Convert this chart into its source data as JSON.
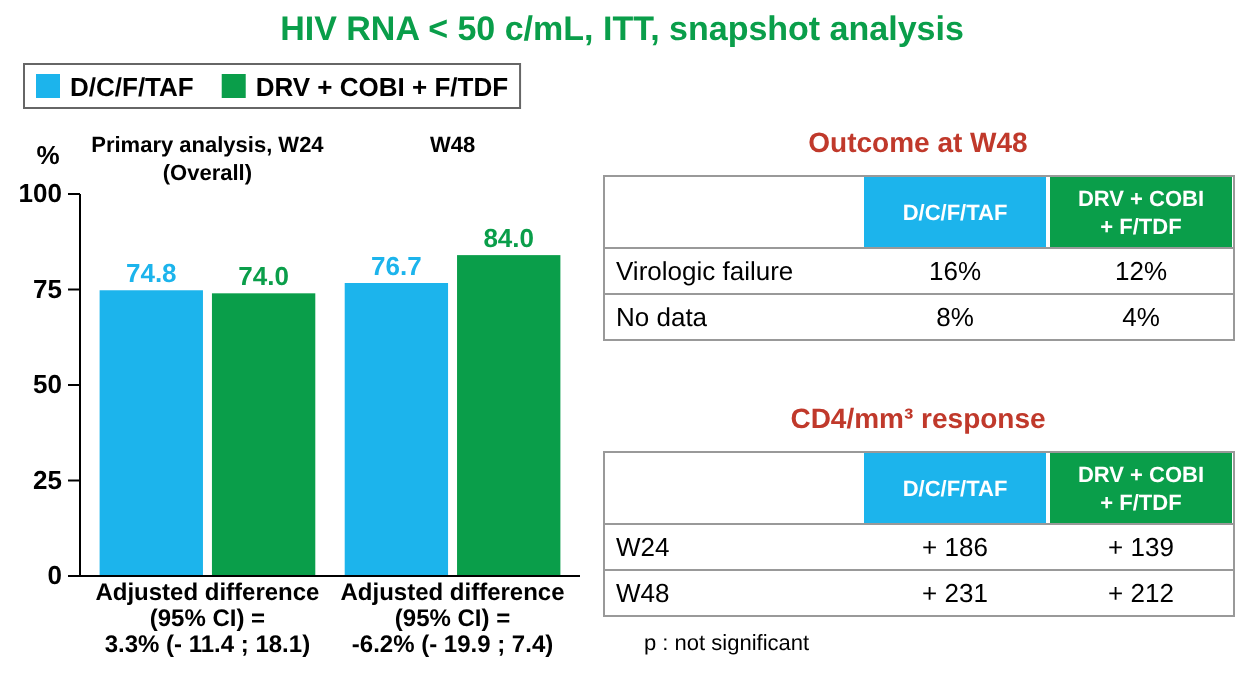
{
  "chart_data": [
    {
      "type": "bar",
      "title": "HIV RNA < 50 c/mL, ITT, snapshot analysis",
      "ylabel": "%",
      "categories": [
        "Primary analysis, W24 (Overall)",
        "W48"
      ],
      "series": [
        {
          "name": "D/C/F/TAF",
          "color": "#1cb4ec",
          "values": [
            74.8,
            76.7
          ],
          "value_labels": [
            "74.8",
            "76.7"
          ]
        },
        {
          "name": "DRV + COBI + F/TDF",
          "color": "#0a9e4a",
          "values": [
            74.0,
            84.0
          ],
          "value_labels": [
            "74.0",
            "84.0"
          ]
        }
      ],
      "ylim": [
        0,
        100
      ],
      "yticks": [
        0,
        25,
        50,
        75,
        100
      ],
      "grid": false,
      "legend": "top left",
      "annotations": [
        "Adjusted difference (95% CI) = 3.3% (- 11.4 ; 18.1)",
        "Adjusted difference (95% CI) = -6.2% (- 19.9 ; 7.4)"
      ]
    },
    {
      "type": "other",
      "title": "Outcome at W48",
      "categories": [
        null,
        "D/C/F/TAF",
        "DRV + COBI + F/TDF"
      ],
      "y_categories": [
        "Virologic failure",
        "No data"
      ],
      "cell_labels": [
        [
          "16%",
          "12%"
        ],
        [
          "8%",
          "4%"
        ]
      ]
    },
    {
      "type": "other",
      "title": "CD4/mm³ response",
      "categories": [
        null,
        "D/C/F/TAF",
        "DRV + COBI + F/TDF"
      ],
      "y_categories": [
        "W24",
        "W48"
      ],
      "cell_labels": [
        [
          "+ 186",
          "+ 139"
        ],
        [
          "+ 231",
          "+ 212"
        ]
      ],
      "annotations": [
        "p : not significant"
      ]
    }
  ]
}
